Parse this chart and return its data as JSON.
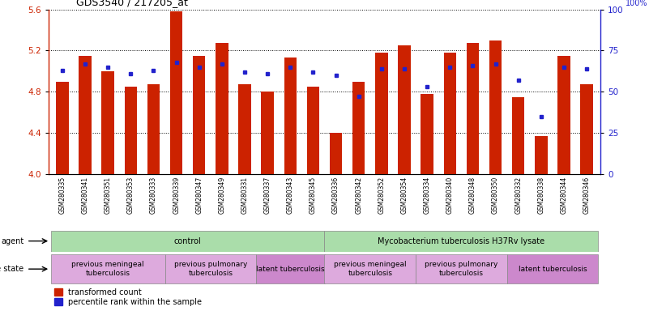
{
  "title": "GDS3540 / 217205_at",
  "samples": [
    "GSM280335",
    "GSM280341",
    "GSM280351",
    "GSM280353",
    "GSM280333",
    "GSM280339",
    "GSM280347",
    "GSM280349",
    "GSM280331",
    "GSM280337",
    "GSM280343",
    "GSM280345",
    "GSM280336",
    "GSM280342",
    "GSM280352",
    "GSM280354",
    "GSM280334",
    "GSM280340",
    "GSM280348",
    "GSM280350",
    "GSM280332",
    "GSM280338",
    "GSM280344",
    "GSM280346"
  ],
  "transformed_count": [
    4.9,
    5.15,
    5.0,
    4.85,
    4.87,
    5.58,
    5.15,
    5.27,
    4.87,
    4.8,
    5.13,
    4.85,
    4.4,
    4.9,
    5.18,
    5.25,
    4.78,
    5.18,
    5.27,
    5.3,
    4.75,
    4.37,
    5.15,
    4.87
  ],
  "percentile_rank": [
    63,
    67,
    65,
    61,
    63,
    68,
    65,
    67,
    62,
    61,
    65,
    62,
    60,
    47,
    64,
    64,
    53,
    65,
    66,
    67,
    57,
    35,
    65,
    64
  ],
  "ylim_left": [
    4.0,
    5.6
  ],
  "ylim_right": [
    0,
    100
  ],
  "yticks_left": [
    4.0,
    4.4,
    4.8,
    5.2,
    5.6
  ],
  "yticks_right": [
    0,
    25,
    50,
    75,
    100
  ],
  "bar_color": "#cc2200",
  "dot_color": "#2222cc",
  "agent_groups": [
    {
      "label": "control",
      "start": 0,
      "end": 12,
      "color": "#aaddaa"
    },
    {
      "label": "Mycobacterium tuberculosis H37Rv lysate",
      "start": 12,
      "end": 24,
      "color": "#aaddaa"
    }
  ],
  "disease_groups": [
    {
      "label": "previous meningeal\ntuberculosis",
      "start": 0,
      "end": 5,
      "color": "#ddaadd"
    },
    {
      "label": "previous pulmonary\ntuberculosis",
      "start": 5,
      "end": 9,
      "color": "#ddaadd"
    },
    {
      "label": "latent tuberculosis",
      "start": 9,
      "end": 12,
      "color": "#cc88cc"
    },
    {
      "label": "previous meningeal\ntuberculosis",
      "start": 12,
      "end": 16,
      "color": "#ddaadd"
    },
    {
      "label": "previous pulmonary\ntuberculosis",
      "start": 16,
      "end": 20,
      "color": "#ddaadd"
    },
    {
      "label": "latent tuberculosis",
      "start": 20,
      "end": 24,
      "color": "#cc88cc"
    }
  ],
  "legend_items": [
    {
      "label": "transformed count",
      "color": "#cc2200"
    },
    {
      "label": "percentile rank within the sample",
      "color": "#2222cc"
    }
  ],
  "background_color": "#ffffff"
}
